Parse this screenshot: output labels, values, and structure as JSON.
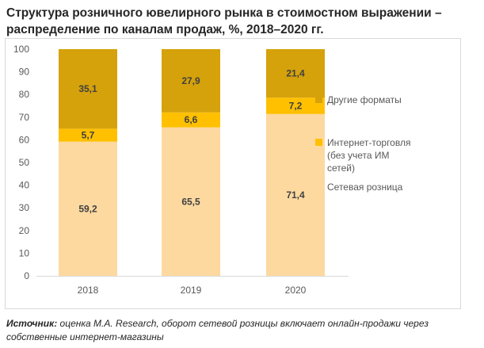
{
  "title_line1": "Структура розничного ювелирного рынка в стоимостном выражении –",
  "title_line2": "распределение по каналам продаж, %, 2018–2020  гг.",
  "source_label": "Источник:",
  "source_text": " оценка M.A. Research, оборот сетевой розницы включает онлайн-продажи через собственные интернет-магазины",
  "chart_data": {
    "type": "bar",
    "stacked": true,
    "title": "Структура розничного ювелирного рынка в стоимостном выражении – распределение по каналам продаж, %, 2018–2020  гг.",
    "categories": [
      "2018",
      "2019",
      "2020"
    ],
    "ylim": [
      0,
      100
    ],
    "yticks": [
      0,
      10,
      20,
      30,
      40,
      50,
      60,
      70,
      80,
      90,
      100
    ],
    "grid": false,
    "legend_position": "right",
    "series": [
      {
        "name": "Сетевая розница",
        "values": [
          59.2,
          65.5,
          71.4
        ],
        "labels": [
          "59,2",
          "65,5",
          "71,4"
        ],
        "color": "#fdd9a0"
      },
      {
        "name": "Интернет-торговля (без учета ИМ сетей)",
        "values": [
          5.7,
          6.6,
          7.2
        ],
        "labels": [
          "5,7",
          "6,6",
          "7,2"
        ],
        "color": "#ffc000"
      },
      {
        "name": "Другие форматы",
        "values": [
          35.1,
          27.9,
          21.4
        ],
        "labels": [
          "35,1",
          "27,9",
          "21,4"
        ],
        "color": "#d5a20b"
      }
    ],
    "legend": {
      "items": [
        {
          "lines": [
            "Другие форматы"
          ],
          "color": "#d5a20b"
        },
        {
          "lines": [
            "Интернет-торговля",
            "(без учета ИМ",
            "сетей)"
          ],
          "color": "#ffc000"
        },
        {
          "lines": [
            "Сетевая розница"
          ],
          "color": "#fdd9a0"
        }
      ]
    }
  }
}
